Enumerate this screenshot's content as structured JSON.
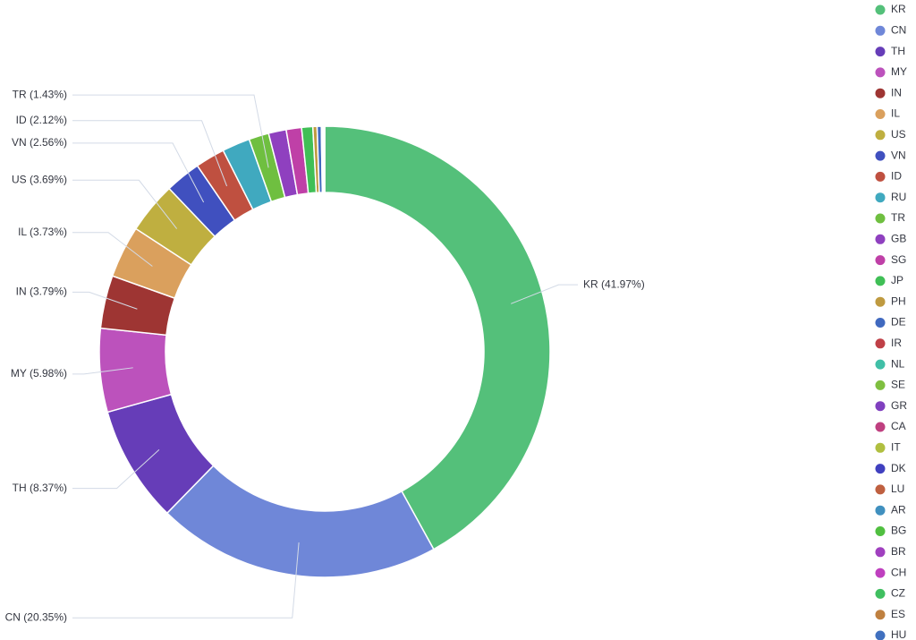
{
  "chart_data": {
    "type": "donut",
    "categories": [
      "KR",
      "CN",
      "TH",
      "MY",
      "IN",
      "IL",
      "US",
      "VN",
      "ID",
      "RU",
      "TR",
      "GB",
      "SG",
      "JP",
      "PH",
      "DE",
      "IR",
      "NL",
      "SE",
      "GR",
      "CA",
      "IT",
      "DK",
      "LU",
      "AR",
      "BG",
      "BR",
      "CH",
      "CZ",
      "ES",
      "HU"
    ],
    "values": [
      41.97,
      20.35,
      8.37,
      5.98,
      3.79,
      3.73,
      3.69,
      2.56,
      2.12,
      2.0,
      1.43,
      1.27,
      1.1,
      0.8,
      0.3,
      0.3,
      0.05,
      0.03,
      0.02,
      0.02,
      0.02,
      0.01,
      0.01,
      0.01,
      0.01,
      0.01,
      0.01,
      0.01,
      0.01,
      0.01,
      0.01
    ],
    "value_labels": [
      "KR (41.97%)",
      "CN (20.35%)",
      "TH (8.37%)",
      "MY (5.98%)",
      "IN (3.79%)",
      "IL (3.73%)",
      "US (3.69%)",
      "VN (2.56%)",
      "ID (2.12%)",
      null,
      "TR (1.43%)",
      null,
      null,
      null,
      null,
      null,
      null,
      null,
      null,
      null,
      null,
      null,
      null,
      null,
      null,
      null,
      null,
      null,
      null,
      null,
      null
    ],
    "colors": [
      "#54c07a",
      "#6f87d8",
      "#663db8",
      "#bc52bc",
      "#9e3533",
      "#daa05d",
      "#bfaf40",
      "#4050bf",
      "#bf5040",
      "#40a9bf",
      "#6fbf40",
      "#8f40bf",
      "#bf40a7",
      "#40bf56",
      "#bf9a40",
      "#4069bf",
      "#bf4047",
      "#40bfa7",
      "#7fbf40",
      "#8040bf",
      "#bf4080",
      "#b0bf40",
      "#4040bf",
      "#bf6040",
      "#4090bf",
      "#50bf40",
      "#a040bf",
      "#bf40bf",
      "#40bf60",
      "#bf8040",
      "#4070bf"
    ],
    "legend": "right"
  }
}
